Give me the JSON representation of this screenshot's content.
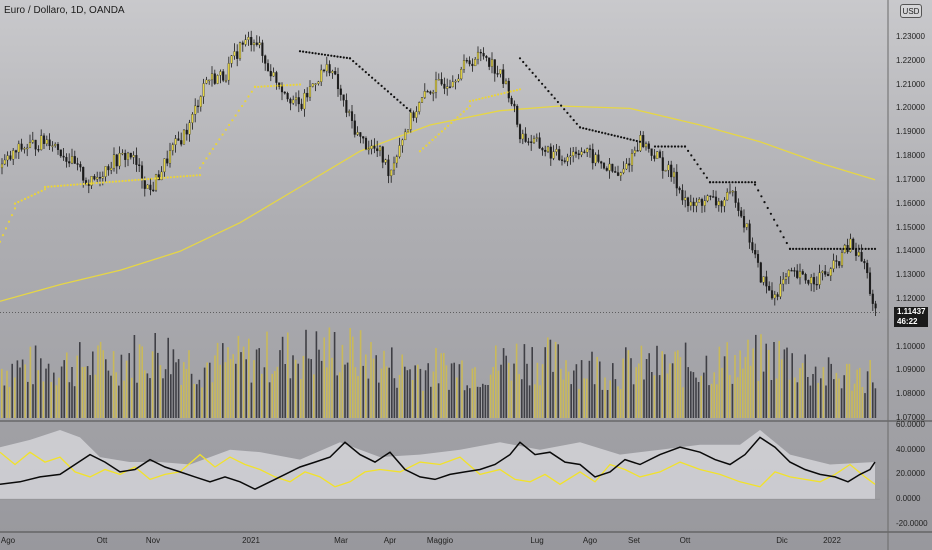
{
  "header": {
    "title": "Euro / Dollaro, 1D, OANDA",
    "scale_button": "USD"
  },
  "price_label": {
    "price": "1.11437",
    "countdown": "46:22"
  },
  "colors": {
    "candles": "#1a1a1a",
    "ma_yellow": "#e6d645",
    "psar_black": "#111111",
    "psar_yellow": "#ead43a",
    "volume_yellow": "#c9b95a",
    "volume_dark": "#3f3f45",
    "osc_yellow": "#f2e22a",
    "osc_black": "#0a0a0a",
    "osc_band": "#d4d4d8"
  },
  "chart_data": [
    {
      "type": "candlestick",
      "title": "Euro / Dollaro, 1D, OANDA",
      "y_ticks": [
        "1.23000",
        "1.22000",
        "1.21000",
        "1.20000",
        "1.19000",
        "1.18000",
        "1.17000",
        "1.16000",
        "1.15000",
        "1.14000",
        "1.13000",
        "1.12000",
        "1.11000",
        "1.10000",
        "1.09000",
        "1.08000",
        "1.07000"
      ],
      "x_ticks": [
        "Ago",
        "Ott",
        "Nov",
        "2021",
        "Mar",
        "Apr",
        "Maggio",
        "Lug",
        "Ago",
        "Set",
        "Ott",
        "Dic",
        "2022"
      ],
      "ylim": [
        1.07,
        1.235
      ],
      "close_path": [
        {
          "x": 0,
          "y": 1.175
        },
        {
          "x": 20,
          "y": 1.183
        },
        {
          "x": 50,
          "y": 1.187
        },
        {
          "x": 70,
          "y": 1.178
        },
        {
          "x": 90,
          "y": 1.168
        },
        {
          "x": 110,
          "y": 1.177
        },
        {
          "x": 130,
          "y": 1.181
        },
        {
          "x": 150,
          "y": 1.165
        },
        {
          "x": 170,
          "y": 1.181
        },
        {
          "x": 190,
          "y": 1.193
        },
        {
          "x": 205,
          "y": 1.212
        },
        {
          "x": 225,
          "y": 1.214
        },
        {
          "x": 240,
          "y": 1.226
        },
        {
          "x": 255,
          "y": 1.23
        },
        {
          "x": 265,
          "y": 1.219
        },
        {
          "x": 280,
          "y": 1.21
        },
        {
          "x": 300,
          "y": 1.2
        },
        {
          "x": 315,
          "y": 1.212
        },
        {
          "x": 330,
          "y": 1.218
        },
        {
          "x": 345,
          "y": 1.2
        },
        {
          "x": 360,
          "y": 1.187
        },
        {
          "x": 380,
          "y": 1.181
        },
        {
          "x": 390,
          "y": 1.173
        },
        {
          "x": 400,
          "y": 1.186
        },
        {
          "x": 415,
          "y": 1.199
        },
        {
          "x": 430,
          "y": 1.208
        },
        {
          "x": 450,
          "y": 1.212
        },
        {
          "x": 470,
          "y": 1.22
        },
        {
          "x": 485,
          "y": 1.223
        },
        {
          "x": 500,
          "y": 1.214
        },
        {
          "x": 510,
          "y": 1.206
        },
        {
          "x": 520,
          "y": 1.189
        },
        {
          "x": 540,
          "y": 1.184
        },
        {
          "x": 560,
          "y": 1.179
        },
        {
          "x": 580,
          "y": 1.183
        },
        {
          "x": 600,
          "y": 1.177
        },
        {
          "x": 620,
          "y": 1.171
        },
        {
          "x": 640,
          "y": 1.187
        },
        {
          "x": 660,
          "y": 1.178
        },
        {
          "x": 675,
          "y": 1.17
        },
        {
          "x": 690,
          "y": 1.158
        },
        {
          "x": 705,
          "y": 1.162
        },
        {
          "x": 720,
          "y": 1.16
        },
        {
          "x": 735,
          "y": 1.164
        },
        {
          "x": 750,
          "y": 1.145
        },
        {
          "x": 760,
          "y": 1.13
        },
        {
          "x": 772,
          "y": 1.121
        },
        {
          "x": 790,
          "y": 1.13
        },
        {
          "x": 810,
          "y": 1.128
        },
        {
          "x": 830,
          "y": 1.131
        },
        {
          "x": 850,
          "y": 1.143
        },
        {
          "x": 865,
          "y": 1.134
        },
        {
          "x": 875,
          "y": 1.114
        }
      ],
      "ma200": [
        {
          "x": 0,
          "y": 1.119
        },
        {
          "x": 60,
          "y": 1.126
        },
        {
          "x": 120,
          "y": 1.132
        },
        {
          "x": 180,
          "y": 1.14
        },
        {
          "x": 240,
          "y": 1.152
        },
        {
          "x": 300,
          "y": 1.167
        },
        {
          "x": 360,
          "y": 1.182
        },
        {
          "x": 430,
          "y": 1.193
        },
        {
          "x": 500,
          "y": 1.199
        },
        {
          "x": 560,
          "y": 1.201
        },
        {
          "x": 630,
          "y": 1.2
        },
        {
          "x": 700,
          "y": 1.193
        },
        {
          "x": 760,
          "y": 1.186
        },
        {
          "x": 820,
          "y": 1.177
        },
        {
          "x": 875,
          "y": 1.17
        }
      ],
      "psar_yellow": [
        {
          "x": 0,
          "y": 1.144,
          "x2": 15,
          "y2": 1.158
        },
        {
          "x": 15,
          "y": 1.16,
          "x2": 45,
          "y2": 1.166
        },
        {
          "x": 45,
          "y": 1.167,
          "x2": 200,
          "y2": 1.172
        },
        {
          "x": 200,
          "y": 1.175,
          "x2": 255,
          "y2": 1.209
        },
        {
          "x": 255,
          "y": 1.209,
          "x2": 300,
          "y2": 1.21
        },
        {
          "x": 420,
          "y": 1.182,
          "x2": 470,
          "y2": 1.201
        },
        {
          "x": 470,
          "y": 1.203,
          "x2": 520,
          "y2": 1.208
        }
      ],
      "psar_black": [
        {
          "x": 300,
          "y": 1.224,
          "x2": 350,
          "y2": 1.221
        },
        {
          "x": 350,
          "y": 1.221,
          "x2": 410,
          "y2": 1.199
        },
        {
          "x": 520,
          "y": 1.221,
          "x2": 580,
          "y2": 1.192
        },
        {
          "x": 580,
          "y": 1.192,
          "x2": 640,
          "y2": 1.186
        },
        {
          "x": 655,
          "y": 1.184,
          "x2": 685,
          "y2": 1.184
        },
        {
          "x": 685,
          "y": 1.184,
          "x2": 710,
          "y2": 1.169
        },
        {
          "x": 710,
          "y": 1.169,
          "x2": 755,
          "y2": 1.169
        },
        {
          "x": 755,
          "y": 1.168,
          "x2": 790,
          "y2": 1.141
        },
        {
          "x": 790,
          "y": 1.141,
          "x2": 875,
          "y2": 1.141
        }
      ],
      "volume_ylim": [
        0,
        100
      ],
      "volume_profile": [
        {
          "x": 0,
          "y": 45
        },
        {
          "x": 100,
          "y": 50
        },
        {
          "x": 160,
          "y": 60
        },
        {
          "x": 200,
          "y": 48
        },
        {
          "x": 260,
          "y": 55
        },
        {
          "x": 340,
          "y": 62
        },
        {
          "x": 400,
          "y": 45
        },
        {
          "x": 480,
          "y": 45
        },
        {
          "x": 520,
          "y": 55
        },
        {
          "x": 600,
          "y": 45
        },
        {
          "x": 700,
          "y": 48
        },
        {
          "x": 780,
          "y": 55
        },
        {
          "x": 830,
          "y": 38
        },
        {
          "x": 875,
          "y": 40
        }
      ]
    },
    {
      "type": "line",
      "y_ticks": [
        "60.0000",
        "40.0000",
        "20.0000",
        "0.0000",
        "-20.0000"
      ],
      "ylim": [
        -25,
        60
      ],
      "series_yellow": [
        {
          "x": 0,
          "y": 38
        },
        {
          "x": 15,
          "y": 28
        },
        {
          "x": 30,
          "y": 38
        },
        {
          "x": 45,
          "y": 30
        },
        {
          "x": 60,
          "y": 34
        },
        {
          "x": 75,
          "y": 22
        },
        {
          "x": 90,
          "y": 18
        },
        {
          "x": 105,
          "y": 24
        },
        {
          "x": 120,
          "y": 20
        },
        {
          "x": 135,
          "y": 26
        },
        {
          "x": 150,
          "y": 16
        },
        {
          "x": 165,
          "y": 20
        },
        {
          "x": 180,
          "y": 22
        },
        {
          "x": 200,
          "y": 36
        },
        {
          "x": 215,
          "y": 26
        },
        {
          "x": 230,
          "y": 34
        },
        {
          "x": 245,
          "y": 28
        },
        {
          "x": 260,
          "y": 24
        },
        {
          "x": 275,
          "y": 18
        },
        {
          "x": 290,
          "y": 14
        },
        {
          "x": 305,
          "y": 22
        },
        {
          "x": 320,
          "y": 18
        },
        {
          "x": 335,
          "y": 10
        },
        {
          "x": 350,
          "y": 14
        },
        {
          "x": 365,
          "y": 22
        },
        {
          "x": 380,
          "y": 24
        },
        {
          "x": 400,
          "y": 22
        },
        {
          "x": 420,
          "y": 30
        },
        {
          "x": 440,
          "y": 28
        },
        {
          "x": 460,
          "y": 34
        },
        {
          "x": 480,
          "y": 20
        },
        {
          "x": 500,
          "y": 24
        },
        {
          "x": 515,
          "y": 16
        },
        {
          "x": 530,
          "y": 14
        },
        {
          "x": 545,
          "y": 20
        },
        {
          "x": 560,
          "y": 12
        },
        {
          "x": 580,
          "y": 22
        },
        {
          "x": 595,
          "y": 14
        },
        {
          "x": 610,
          "y": 28
        },
        {
          "x": 625,
          "y": 24
        },
        {
          "x": 640,
          "y": 18
        },
        {
          "x": 660,
          "y": 22
        },
        {
          "x": 680,
          "y": 30
        },
        {
          "x": 700,
          "y": 24
        },
        {
          "x": 720,
          "y": 20
        },
        {
          "x": 740,
          "y": 14
        },
        {
          "x": 760,
          "y": 10
        },
        {
          "x": 775,
          "y": 22
        },
        {
          "x": 790,
          "y": 18
        },
        {
          "x": 805,
          "y": 16
        },
        {
          "x": 820,
          "y": 14
        },
        {
          "x": 835,
          "y": 20
        },
        {
          "x": 850,
          "y": 28
        },
        {
          "x": 865,
          "y": 18
        },
        {
          "x": 875,
          "y": 12
        }
      ],
      "series_black": [
        {
          "x": 0,
          "y": 12
        },
        {
          "x": 20,
          "y": 14
        },
        {
          "x": 40,
          "y": 18
        },
        {
          "x": 60,
          "y": 20
        },
        {
          "x": 75,
          "y": 28
        },
        {
          "x": 90,
          "y": 36
        },
        {
          "x": 105,
          "y": 30
        },
        {
          "x": 120,
          "y": 22
        },
        {
          "x": 135,
          "y": 24
        },
        {
          "x": 150,
          "y": 32
        },
        {
          "x": 165,
          "y": 26
        },
        {
          "x": 180,
          "y": 22
        },
        {
          "x": 195,
          "y": 18
        },
        {
          "x": 210,
          "y": 14
        },
        {
          "x": 225,
          "y": 18
        },
        {
          "x": 240,
          "y": 14
        },
        {
          "x": 255,
          "y": 8
        },
        {
          "x": 270,
          "y": 14
        },
        {
          "x": 285,
          "y": 20
        },
        {
          "x": 300,
          "y": 26
        },
        {
          "x": 315,
          "y": 30
        },
        {
          "x": 330,
          "y": 34
        },
        {
          "x": 345,
          "y": 46
        },
        {
          "x": 360,
          "y": 36
        },
        {
          "x": 375,
          "y": 30
        },
        {
          "x": 390,
          "y": 38
        },
        {
          "x": 405,
          "y": 24
        },
        {
          "x": 420,
          "y": 18
        },
        {
          "x": 435,
          "y": 16
        },
        {
          "x": 450,
          "y": 20
        },
        {
          "x": 465,
          "y": 22
        },
        {
          "x": 480,
          "y": 24
        },
        {
          "x": 495,
          "y": 28
        },
        {
          "x": 510,
          "y": 36
        },
        {
          "x": 520,
          "y": 46
        },
        {
          "x": 535,
          "y": 36
        },
        {
          "x": 550,
          "y": 38
        },
        {
          "x": 565,
          "y": 30
        },
        {
          "x": 580,
          "y": 28
        },
        {
          "x": 595,
          "y": 18
        },
        {
          "x": 610,
          "y": 22
        },
        {
          "x": 625,
          "y": 32
        },
        {
          "x": 640,
          "y": 28
        },
        {
          "x": 660,
          "y": 36
        },
        {
          "x": 680,
          "y": 42
        },
        {
          "x": 700,
          "y": 38
        },
        {
          "x": 715,
          "y": 32
        },
        {
          "x": 730,
          "y": 28
        },
        {
          "x": 745,
          "y": 36
        },
        {
          "x": 760,
          "y": 50
        },
        {
          "x": 775,
          "y": 42
        },
        {
          "x": 790,
          "y": 30
        },
        {
          "x": 805,
          "y": 24
        },
        {
          "x": 820,
          "y": 20
        },
        {
          "x": 835,
          "y": 18
        },
        {
          "x": 848,
          "y": 14
        },
        {
          "x": 860,
          "y": 20
        },
        {
          "x": 870,
          "y": 24
        },
        {
          "x": 875,
          "y": 30
        }
      ],
      "band_upper": [
        {
          "x": 0,
          "y": 42
        },
        {
          "x": 30,
          "y": 48
        },
        {
          "x": 60,
          "y": 56
        },
        {
          "x": 80,
          "y": 50
        },
        {
          "x": 100,
          "y": 34
        },
        {
          "x": 130,
          "y": 30
        },
        {
          "x": 160,
          "y": 30
        },
        {
          "x": 190,
          "y": 28
        },
        {
          "x": 230,
          "y": 40
        },
        {
          "x": 260,
          "y": 38
        },
        {
          "x": 300,
          "y": 32
        },
        {
          "x": 340,
          "y": 46
        },
        {
          "x": 380,
          "y": 34
        },
        {
          "x": 420,
          "y": 36
        },
        {
          "x": 460,
          "y": 40
        },
        {
          "x": 500,
          "y": 46
        },
        {
          "x": 540,
          "y": 40
        },
        {
          "x": 580,
          "y": 46
        },
        {
          "x": 620,
          "y": 36
        },
        {
          "x": 660,
          "y": 40
        },
        {
          "x": 700,
          "y": 44
        },
        {
          "x": 740,
          "y": 44
        },
        {
          "x": 760,
          "y": 56
        },
        {
          "x": 790,
          "y": 36
        },
        {
          "x": 830,
          "y": 28
        },
        {
          "x": 875,
          "y": 30
        }
      ]
    }
  ]
}
